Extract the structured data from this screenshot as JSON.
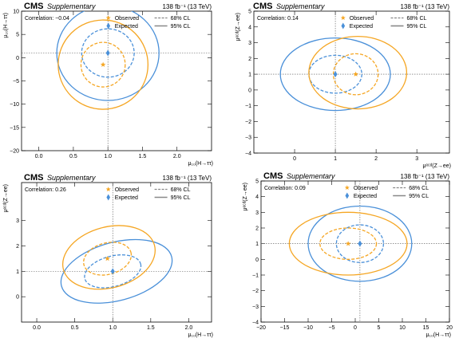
{
  "colors": {
    "observed": "#f5a623",
    "expected": "#4a90d9",
    "frame": "#000000",
    "grid": "#555555",
    "legend_line": "#888888"
  },
  "legend": {
    "observed": "Observed",
    "expected": "Expected",
    "cl68": "68% CL",
    "cl95": "95% CL"
  },
  "header": {
    "experiment": "CMS",
    "label": "Supplementary",
    "lumi": "138 fb⁻¹ (13 TeV)"
  },
  "chart_data": [
    {
      "type": "scatter",
      "panel": "top-left",
      "correlation_label": "Correlation: −0.04",
      "xlabel": "μ₁₀(H→ττ)",
      "ylabel": "μ₁₀(H→ττ)",
      "xlim": [
        -0.25,
        2.5
      ],
      "ylim": [
        -20,
        10
      ],
      "xticks": [
        0.0,
        0.5,
        1.0,
        1.5,
        2.0
      ],
      "xticklabels": [
        "0.0",
        "0.5",
        "1.0",
        "1.5",
        "2.0"
      ],
      "yticks": [
        -20,
        -15,
        -10,
        -5,
        0,
        5,
        10
      ],
      "yticklabels": [
        "−20",
        "−15",
        "−10",
        "−5",
        "0",
        "5",
        "10"
      ],
      "crosshair": [
        1.0,
        1.0
      ],
      "observed": {
        "point": [
          0.93,
          -1.5
        ],
        "cl68": {
          "center": [
            0.93,
            -1.5
          ],
          "rx": 0.32,
          "ry": 4.8,
          "rot": 0
        },
        "cl95": {
          "center": [
            0.93,
            -1.5
          ],
          "rx": 0.65,
          "ry": 9.6,
          "rot": 0
        }
      },
      "expected": {
        "point": [
          1.0,
          1.0
        ],
        "cl68": {
          "center": [
            1.0,
            1.0
          ],
          "rx": 0.38,
          "ry": 5.2,
          "rot": 0
        },
        "cl95": {
          "center": [
            1.0,
            1.0
          ],
          "rx": 0.74,
          "ry": 10.2,
          "rot": 0
        }
      }
    },
    {
      "type": "scatter",
      "panel": "top-right",
      "correlation_label": "Correlation: 0.14",
      "xlabel": "μᵉᶜᵈ(Z→ee)",
      "ylabel": "μᵉᶜᵈ(Z→ee)",
      "xlim": [
        -1.0,
        3.8
      ],
      "ylim": [
        -4,
        5
      ],
      "xticks": [
        0,
        1,
        2,
        3
      ],
      "xticklabels": [
        "0",
        "1",
        "2",
        "3"
      ],
      "yticks": [
        -4,
        -3,
        -2,
        -1,
        0,
        1,
        2,
        3,
        4,
        5
      ],
      "yticklabels": [
        "−4",
        "−3",
        "−2",
        "−1",
        "0",
        "1",
        "2",
        "3",
        "4",
        "5"
      ],
      "crosshair": [
        1.0,
        1.0
      ],
      "observed": {
        "point": [
          1.5,
          1.0
        ],
        "cl68": {
          "center": [
            1.5,
            1.0
          ],
          "rx": 0.55,
          "ry": 1.3,
          "rot": 0
        },
        "cl95": {
          "center": [
            1.55,
            1.1
          ],
          "rx": 1.2,
          "ry": 2.3,
          "rot": 0
        }
      },
      "expected": {
        "point": [
          1.0,
          1.0
        ],
        "cl68": {
          "center": [
            1.0,
            1.0
          ],
          "rx": 0.65,
          "ry": 1.2,
          "rot": 0
        },
        "cl95": {
          "center": [
            1.0,
            1.0
          ],
          "rx": 1.35,
          "ry": 2.3,
          "rot": 0
        }
      }
    },
    {
      "type": "scatter",
      "panel": "bottom-left",
      "correlation_label": "Correlation: 0.26",
      "xlabel": "μ₁₀(H→ττ)",
      "ylabel": "μᵉᶜᵈ(Z→ee)",
      "xlim": [
        -0.2,
        2.3
      ],
      "ylim": [
        -1,
        4.5
      ],
      "xticks": [
        0.0,
        0.5,
        1.0,
        1.5,
        2.0
      ],
      "xticklabels": [
        "0.0",
        "0.5",
        "1.0",
        "1.5",
        "2.0"
      ],
      "yticks": [
        0,
        1,
        2,
        3
      ],
      "yticklabels": [
        "0",
        "1",
        "2",
        "3"
      ],
      "crosshair": [
        1.0,
        1.0
      ],
      "observed": {
        "point": [
          0.93,
          1.5
        ],
        "cl68": {
          "center": [
            0.93,
            1.5
          ],
          "rx": 0.32,
          "ry": 0.62,
          "rot": -15
        },
        "cl95": {
          "center": [
            0.95,
            1.55
          ],
          "rx": 0.62,
          "ry": 1.2,
          "rot": -15
        }
      },
      "expected": {
        "point": [
          1.0,
          1.0
        ],
        "cl68": {
          "center": [
            1.0,
            1.0
          ],
          "rx": 0.38,
          "ry": 0.6,
          "rot": -15
        },
        "cl95": {
          "center": [
            1.05,
            1.0
          ],
          "rx": 0.75,
          "ry": 1.15,
          "rot": -15
        }
      }
    },
    {
      "type": "scatter",
      "panel": "bottom-right",
      "correlation_label": "Correlation: 0.09",
      "xlabel": "μ₁₀(H→ττ)",
      "ylabel": "μᵉᶜᵈ(Z→ee)",
      "xlim": [
        -20,
        20
      ],
      "ylim": [
        -4,
        5
      ],
      "xticks": [
        -20,
        -15,
        -10,
        -5,
        0,
        5,
        10,
        15,
        20
      ],
      "xticklabels": [
        "−20",
        "−15",
        "−10",
        "−5",
        "0",
        "5",
        "10",
        "15",
        "20"
      ],
      "yticks": [
        -4,
        -3,
        -2,
        -1,
        0,
        1,
        2,
        3,
        4,
        5
      ],
      "yticklabels": [
        "−4",
        "−3",
        "−2",
        "−1",
        "0",
        "1",
        "2",
        "3",
        "4",
        "5"
      ],
      "crosshair": [
        1.0,
        1.0
      ],
      "observed": {
        "point": [
          -1.5,
          1.0
        ],
        "cl68": {
          "center": [
            -1.5,
            1.0
          ],
          "rx": 6.0,
          "ry": 1.0,
          "rot": 0
        },
        "cl95": {
          "center": [
            -1.5,
            1.0
          ],
          "rx": 12.5,
          "ry": 2.0,
          "rot": 0
        }
      },
      "expected": {
        "point": [
          1.0,
          1.0
        ],
        "cl68": {
          "center": [
            1.0,
            1.0
          ],
          "rx": 5.0,
          "ry": 1.2,
          "rot": 0
        },
        "cl95": {
          "center": [
            1.0,
            1.0
          ],
          "rx": 11.0,
          "ry": 2.4,
          "rot": 0
        }
      }
    }
  ]
}
